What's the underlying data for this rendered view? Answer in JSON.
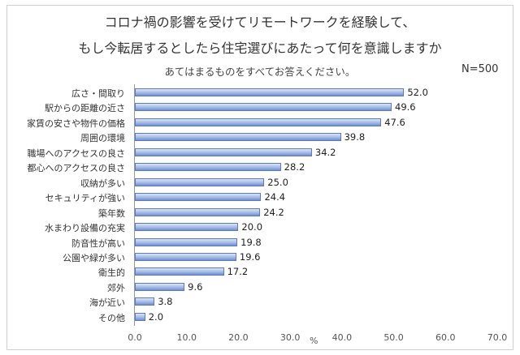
{
  "chart_data": {
    "type": "bar",
    "orientation": "horizontal",
    "title": "コロナ禍の影響を受けてリモートワークを経験して、",
    "title2": "もし今転居するとしたら住宅選びにあたって何を意識しますか",
    "subtitle": "あてはまるものをすべてお答えください。",
    "note": "N=500",
    "xlabel": "%",
    "xlim": [
      0,
      70
    ],
    "xticks": [
      "0.0",
      "10.0",
      "20.0",
      "30.0",
      "40.0",
      "50.0",
      "60.0",
      "70.0"
    ],
    "categories": [
      "広さ・間取り",
      "駅からの距離の近さ",
      "家賃の安さや物件の価格",
      "周囲の環境",
      "職場へのアクセスの良さ",
      "都心へのアクセスの良さ",
      "収納が多い",
      "セキュリティが強い",
      "築年数",
      "水まわり設備の充実",
      "防音性が高い",
      "公園や緑が多い",
      "衛生的",
      "郊外",
      "海が近い",
      "その他"
    ],
    "values": [
      52.0,
      49.6,
      47.6,
      39.8,
      34.2,
      28.2,
      25.0,
      24.4,
      24.2,
      20.0,
      19.8,
      19.6,
      17.2,
      9.6,
      3.8,
      2.0
    ],
    "value_labels": [
      "52.0",
      "49.6",
      "47.6",
      "39.8",
      "34.2",
      "28.2",
      "25.0",
      "24.4",
      "24.2",
      "20.0",
      "19.8",
      "19.6",
      "17.2",
      "9.6",
      "3.8",
      "2.0"
    ],
    "bar_color": "#9fb6e3"
  }
}
